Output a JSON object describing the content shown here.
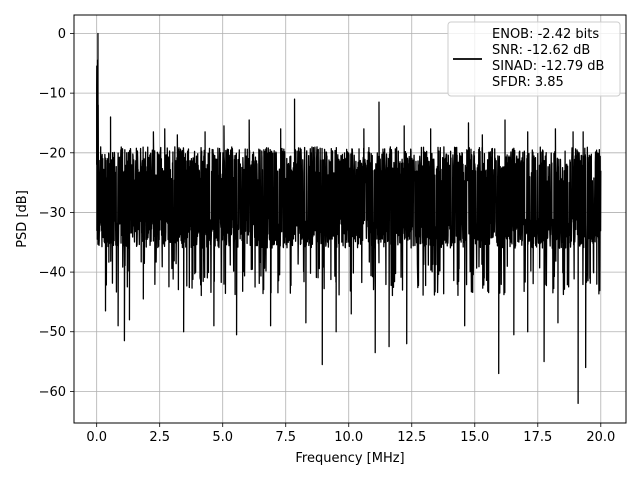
{
  "chart_data": {
    "type": "line",
    "title": "",
    "xlabel": "Frequency [MHz]",
    "ylabel": "PSD [dB]",
    "xlim": [
      -0.9,
      21.0
    ],
    "ylim": [
      -65.3,
      3.1
    ],
    "xticks": [
      0.0,
      2.5,
      5.0,
      7.5,
      10.0,
      12.5,
      15.0,
      17.5,
      20.0
    ],
    "xtick_labels": [
      "0.0",
      "2.5",
      "5.0",
      "7.5",
      "10.0",
      "12.5",
      "15.0",
      "17.5",
      "20.0"
    ],
    "yticks": [
      0,
      -10,
      -20,
      -30,
      -40,
      -50,
      -60
    ],
    "ytick_labels": [
      "0",
      "−10",
      "−20",
      "−30",
      "−40",
      "−50",
      "−60"
    ],
    "grid": true,
    "legend_position": "top-right",
    "series": [
      {
        "name": "ENOB: -2.42 bits\nSNR: -12.62 dB\nSINAD: -12.79 dB\nSFDR: 3.85",
        "color": "#000000",
        "x_range": [
          0.0,
          20.0
        ],
        "peak": {
          "x": 0.05,
          "y": 0
        },
        "typical_range": [
          -36,
          -19
        ],
        "deep_dips": [
          {
            "x": 0.35,
            "y": -46.5
          },
          {
            "x": 0.85,
            "y": -49
          },
          {
            "x": 1.1,
            "y": -51.5
          },
          {
            "x": 1.3,
            "y": -48
          },
          {
            "x": 1.85,
            "y": -44.5
          },
          {
            "x": 3.45,
            "y": -50
          },
          {
            "x": 4.65,
            "y": -49
          },
          {
            "x": 5.55,
            "y": -50.5
          },
          {
            "x": 6.9,
            "y": -49
          },
          {
            "x": 8.3,
            "y": -48.5
          },
          {
            "x": 8.95,
            "y": -55.5
          },
          {
            "x": 9.5,
            "y": -50
          },
          {
            "x": 10.1,
            "y": -47
          },
          {
            "x": 11.05,
            "y": -53.5
          },
          {
            "x": 11.6,
            "y": -52.5
          },
          {
            "x": 12.3,
            "y": -52
          },
          {
            "x": 14.6,
            "y": -49
          },
          {
            "x": 15.95,
            "y": -57
          },
          {
            "x": 16.55,
            "y": -50.5
          },
          {
            "x": 17.1,
            "y": -50
          },
          {
            "x": 17.75,
            "y": -55
          },
          {
            "x": 18.3,
            "y": -48.5
          },
          {
            "x": 19.1,
            "y": -62
          },
          {
            "x": 19.4,
            "y": -56
          }
        ],
        "tall_spikes": [
          {
            "x": 0.55,
            "y": -14
          },
          {
            "x": 2.25,
            "y": -16.5
          },
          {
            "x": 2.7,
            "y": -16
          },
          {
            "x": 3.2,
            "y": -17
          },
          {
            "x": 4.3,
            "y": -16.5
          },
          {
            "x": 5.05,
            "y": -15.5
          },
          {
            "x": 6.05,
            "y": -14.5
          },
          {
            "x": 7.3,
            "y": -16
          },
          {
            "x": 7.85,
            "y": -11
          },
          {
            "x": 10.6,
            "y": -16
          },
          {
            "x": 11.2,
            "y": -11.5
          },
          {
            "x": 12.2,
            "y": -15.5
          },
          {
            "x": 13.25,
            "y": -16
          },
          {
            "x": 14.75,
            "y": -15
          },
          {
            "x": 15.3,
            "y": -17
          },
          {
            "x": 16.2,
            "y": -14.5
          },
          {
            "x": 17.1,
            "y": -16.5
          },
          {
            "x": 18.2,
            "y": -16
          },
          {
            "x": 18.9,
            "y": -16.5
          },
          {
            "x": 19.3,
            "y": -16.5
          }
        ]
      }
    ],
    "legend": {
      "lines": [
        "ENOB: -2.42 bits",
        "SNR: -12.62 dB",
        "SINAD: -12.79 dB",
        "SFDR: 3.85"
      ]
    }
  }
}
